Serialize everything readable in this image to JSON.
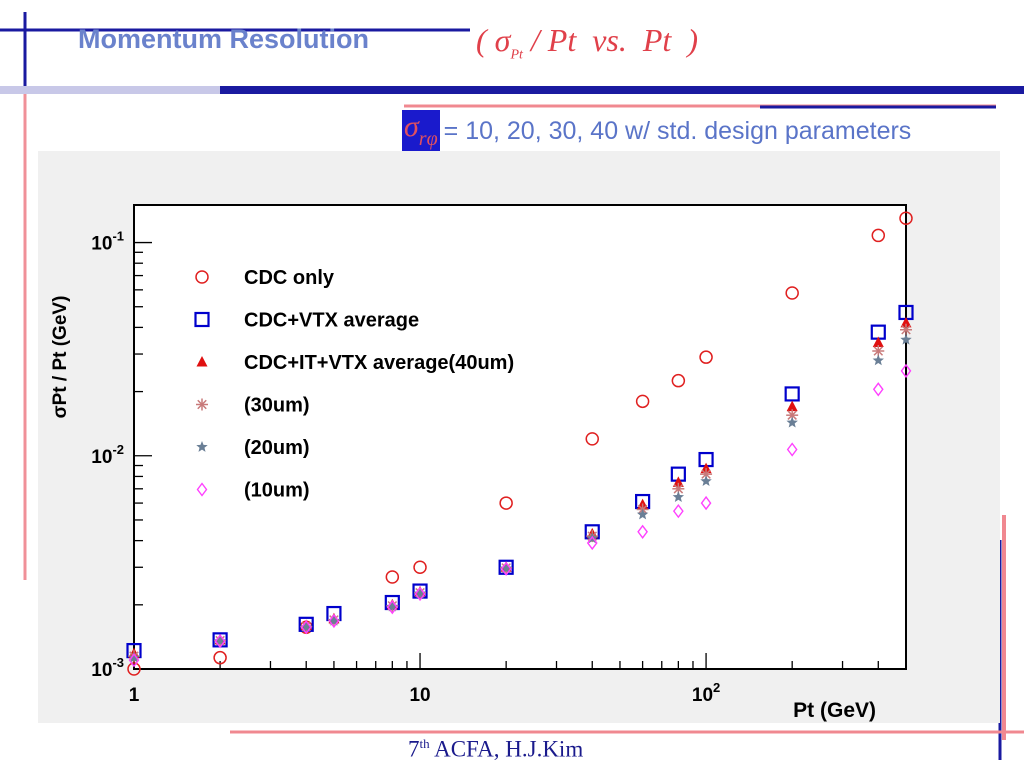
{
  "slide": {
    "title": "Momentum Resolution",
    "title_formula": {
      "open": "(",
      "sigma": "σ",
      "sigma_sub": "Pt",
      "slash_pt": "/ Pt",
      "vs": "vs.",
      "pt": "Pt",
      "close": ")"
    },
    "subtitle": {
      "sigma": "σ",
      "sigma_sub": "rφ",
      "text": "= 10, 20, 30, 40  w/ std. design parameters"
    },
    "footer": {
      "ordinal": "7",
      "ordinal_sup": "th",
      "text": "ACFA, H.J.Kim"
    }
  },
  "colors": {
    "title": "#6a82cc",
    "formula": "#e0404a",
    "sigma_box_bg": "#1a1acc",
    "bar_dark": "#1a1aa0",
    "bar_pink": "#f08890",
    "cdc_only": "#e02020",
    "cdc_vtx": "#0000cc",
    "cdc_it_vtx_40": "#e01010",
    "um30": "#c87a7a",
    "um20": "#6a7f96",
    "um10": "#ff40ff"
  },
  "chart_data": {
    "type": "scatter",
    "xscale": "log",
    "yscale": "log",
    "xlim": [
      1,
      500
    ],
    "ylim": [
      0.001,
      0.15
    ],
    "xlabel": "Pt (GeV)",
    "ylabel": "σPt / Pt (GeV)",
    "xticks": [
      {
        "value": 1,
        "label": "1"
      },
      {
        "value": 10,
        "label": "10"
      },
      {
        "value": 100,
        "label": "10",
        "sup": "2"
      }
    ],
    "yticks": [
      {
        "value": 0.001,
        "label": "10",
        "sup": "-3"
      },
      {
        "value": 0.01,
        "label": "10",
        "sup": "-2"
      },
      {
        "value": 0.1,
        "label": "10",
        "sup": "-1"
      }
    ],
    "legend_position": "top-left",
    "grid": false,
    "series": [
      {
        "name": "CDC only",
        "marker": "circle-open",
        "color": "#e02020",
        "points": [
          [
            1,
            0.001
          ],
          [
            2,
            0.00113
          ],
          [
            4,
            0.00157
          ],
          [
            8,
            0.0027
          ],
          [
            10,
            0.003
          ],
          [
            20,
            0.006
          ],
          [
            40,
            0.012
          ],
          [
            60,
            0.018
          ],
          [
            80,
            0.0225
          ],
          [
            100,
            0.029
          ],
          [
            200,
            0.058
          ],
          [
            400,
            0.108
          ],
          [
            500,
            0.13
          ]
        ]
      },
      {
        "name": "CDC+VTX average",
        "marker": "square-open",
        "color": "#0000cc",
        "points": [
          [
            1,
            0.00122
          ],
          [
            2,
            0.00137
          ],
          [
            4,
            0.00162
          ],
          [
            5,
            0.00182
          ],
          [
            8,
            0.00205
          ],
          [
            10,
            0.00232
          ],
          [
            20,
            0.003
          ],
          [
            40,
            0.0044
          ],
          [
            60,
            0.0061
          ],
          [
            80,
            0.0082
          ],
          [
            100,
            0.0096
          ],
          [
            200,
            0.0195
          ],
          [
            400,
            0.038
          ],
          [
            500,
            0.047
          ]
        ]
      },
      {
        "name": "CDC+IT+VTX average(40um)",
        "marker": "triangle",
        "color": "#e01010",
        "points": [
          [
            1,
            0.00118
          ],
          [
            2,
            0.00137
          ],
          [
            4,
            0.0016
          ],
          [
            5,
            0.00172
          ],
          [
            8,
            0.002
          ],
          [
            10,
            0.0023
          ],
          [
            20,
            0.003
          ],
          [
            40,
            0.0043
          ],
          [
            60,
            0.0059
          ],
          [
            80,
            0.0075
          ],
          [
            100,
            0.0087
          ],
          [
            200,
            0.017
          ],
          [
            400,
            0.034
          ],
          [
            500,
            0.042
          ]
        ]
      },
      {
        "name": "(30um)",
        "marker": "asterisk",
        "color": "#c87a7a",
        "points": [
          [
            1,
            0.00115
          ],
          [
            2,
            0.00136
          ],
          [
            4,
            0.00158
          ],
          [
            5,
            0.0017
          ],
          [
            8,
            0.00198
          ],
          [
            10,
            0.00228
          ],
          [
            20,
            0.00298
          ],
          [
            40,
            0.0042
          ],
          [
            60,
            0.0056
          ],
          [
            80,
            0.007
          ],
          [
            100,
            0.0082
          ],
          [
            200,
            0.0155
          ],
          [
            400,
            0.031
          ],
          [
            500,
            0.039
          ]
        ]
      },
      {
        "name": "(20um)",
        "marker": "star",
        "color": "#6a7f96",
        "points": [
          [
            1,
            0.00113
          ],
          [
            2,
            0.00135
          ],
          [
            4,
            0.00157
          ],
          [
            5,
            0.00168
          ],
          [
            8,
            0.00196
          ],
          [
            10,
            0.00226
          ],
          [
            20,
            0.00296
          ],
          [
            40,
            0.0041
          ],
          [
            60,
            0.0053
          ],
          [
            80,
            0.0064
          ],
          [
            100,
            0.0076
          ],
          [
            200,
            0.0143
          ],
          [
            400,
            0.028
          ],
          [
            500,
            0.035
          ]
        ]
      },
      {
        "name": "(10um)",
        "marker": "diamond-open",
        "color": "#ff40ff",
        "points": [
          [
            1,
            0.0011
          ],
          [
            2,
            0.00135
          ],
          [
            4,
            0.00157
          ],
          [
            5,
            0.00168
          ],
          [
            8,
            0.00195
          ],
          [
            10,
            0.00225
          ],
          [
            20,
            0.00295
          ],
          [
            40,
            0.0039
          ],
          [
            60,
            0.0044
          ],
          [
            80,
            0.0055
          ],
          [
            100,
            0.006
          ],
          [
            200,
            0.0107
          ],
          [
            400,
            0.0205
          ],
          [
            500,
            0.025
          ]
        ]
      }
    ]
  }
}
